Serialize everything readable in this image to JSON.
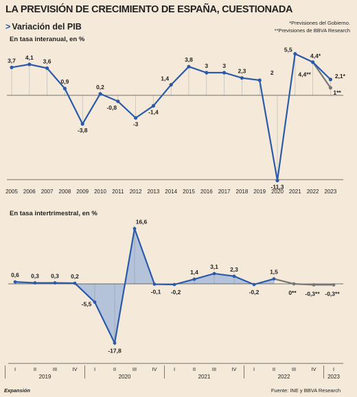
{
  "header": {
    "title": "LA PREVISIÓN DE CRECIMIENTO DE ESPAÑA, CUESTIONADA",
    "subtitle_arrow": ">",
    "subtitle": "Variación del PIB",
    "note_gov": "*Previsiones del Gobierno.",
    "note_bbva": "**Previsiones de BBVA Research"
  },
  "footer": {
    "left": "Expansión",
    "right": "Fuente: INE y BBVA Research"
  },
  "colors": {
    "line": "#2a5aa8",
    "forecast": "#777777",
    "fill": "#a8bcd8",
    "axis": "#444444"
  },
  "chart_data": [
    {
      "type": "line",
      "title": "En tasa interanual, en %",
      "categories": [
        "2005",
        "2006",
        "2007",
        "2008",
        "2009",
        "2010",
        "2011",
        "2012",
        "2013",
        "2014",
        "2015",
        "2016",
        "2017",
        "2018",
        "2019",
        "2020",
        "2021",
        "2022",
        "2023"
      ],
      "series": [
        {
          "values": [
            3.7,
            4.1,
            3.6,
            0.9,
            -3.8,
            0.2,
            -0.8,
            -3,
            -1.4,
            1.4,
            3.8,
            3,
            3,
            2.3,
            2,
            -11.3,
            5.5,
            4.4,
            2.1
          ]
        }
      ],
      "forecast_line": {
        "from_category": "2022",
        "from_value": 4.4,
        "to_category": "2023",
        "to_value": 1
      },
      "data_labels": [
        "3,7",
        "4,1",
        "3,6",
        "0,9",
        "-3,8",
        "0,2",
        "-0,8",
        "-3",
        "-1,4",
        "1,4",
        "3,8",
        "3",
        "3",
        "2,3",
        "2",
        "-11,3",
        "5,5",
        "4,4*",
        "2,1*"
      ],
      "extra_labels": [
        "4,4**",
        "1**"
      ],
      "ylim": [
        -12,
        6.5
      ]
    },
    {
      "type": "area",
      "title": "En tasa intertrimestral, en %",
      "quarter_labels": [
        "I",
        "II",
        "III",
        "IV",
        "I",
        "II",
        "III",
        "IV",
        "I",
        "II",
        "III",
        "IV",
        "I",
        "II",
        "III",
        "IV",
        "I"
      ],
      "year_labels": [
        "2019",
        "2020",
        "2021",
        "2022",
        "2023"
      ],
      "year_spans": [
        [
          0,
          3
        ],
        [
          4,
          7
        ],
        [
          8,
          11
        ],
        [
          12,
          15
        ],
        [
          16,
          16
        ]
      ],
      "series": [
        {
          "values": [
            0.6,
            0.3,
            0.3,
            0.2,
            -5.5,
            -17.8,
            16.6,
            -0.1,
            -0.2,
            1.4,
            3.1,
            2.3,
            -0.2,
            1.5
          ]
        }
      ],
      "forecast_values": [
        0,
        -0.3,
        -0.3
      ],
      "data_labels": [
        "0,6",
        "0,3",
        "0,3",
        "0,2",
        "-5,5",
        "-17,8",
        "16,6",
        "-0,1",
        "-0,2",
        "1,4",
        "3,1",
        "2,3",
        "-0,2",
        "1,5"
      ],
      "forecast_labels": [
        "0**",
        "-0,3**",
        "-0,3**"
      ],
      "ylim": [
        -19,
        18
      ]
    }
  ]
}
